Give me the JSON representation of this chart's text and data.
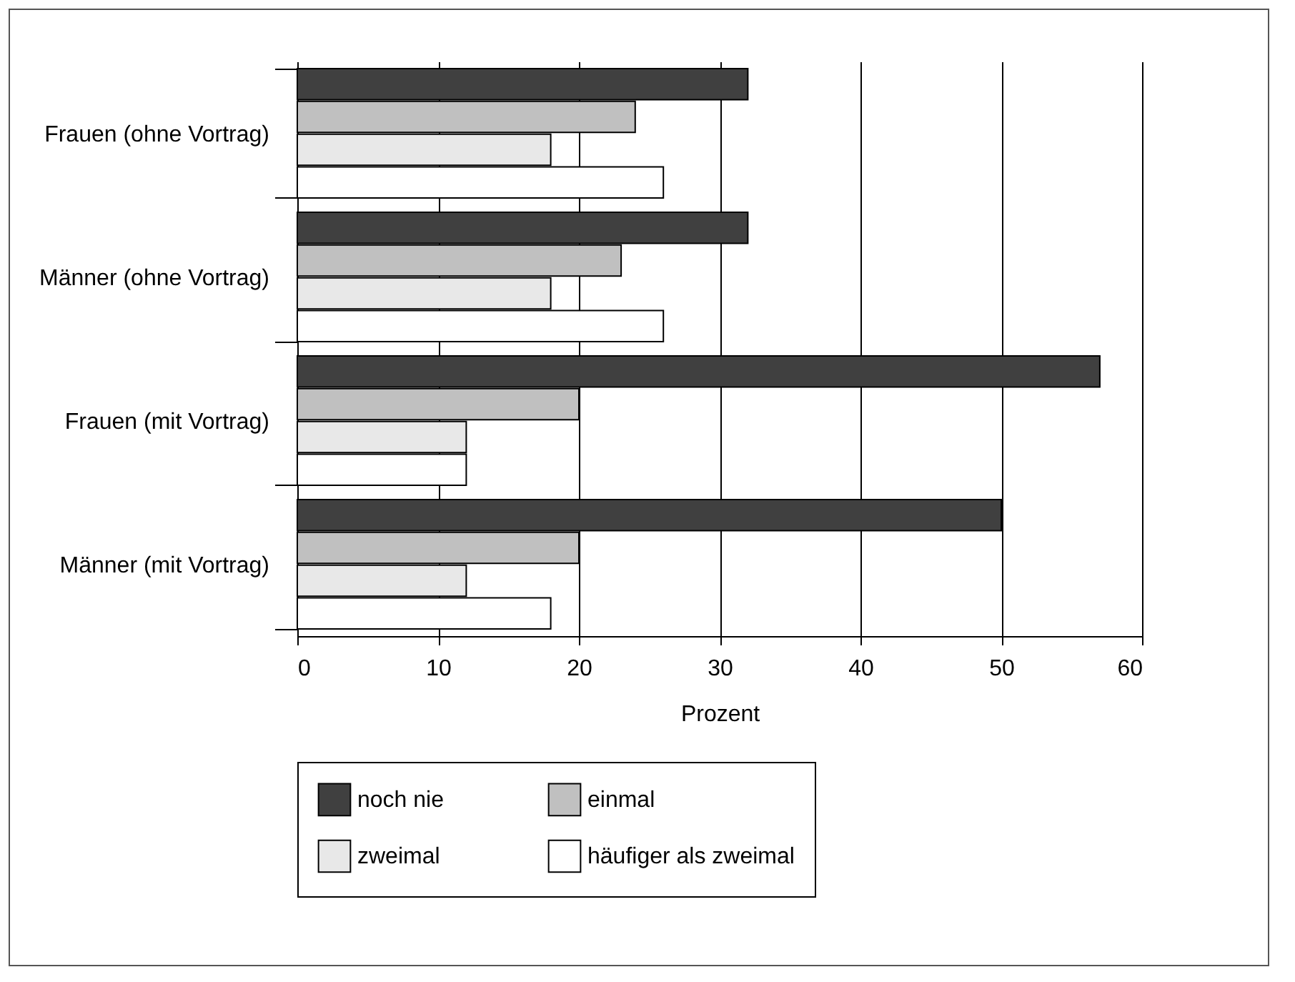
{
  "chart_data": {
    "type": "bar",
    "orientation": "horizontal",
    "categories": [
      "Frauen (ohne Vortrag)",
      "Männer (ohne Vortrag)",
      "Frauen (mit Vortrag)",
      "Männer (mit Vortrag)"
    ],
    "series": [
      {
        "name": "noch nie",
        "color": "#404040",
        "values": [
          32,
          32,
          57,
          50
        ]
      },
      {
        "name": "einmal",
        "color": "#c0c0c0",
        "values": [
          24,
          23,
          20,
          20
        ]
      },
      {
        "name": "zweimal",
        "color": "#e8e8e8",
        "values": [
          18,
          18,
          12,
          12
        ]
      },
      {
        "name": "häufiger als zweimal",
        "color": "#ffffff",
        "values": [
          26,
          26,
          12,
          18
        ]
      }
    ],
    "xlabel": "Prozent",
    "xlim": [
      0,
      60
    ],
    "xticks": [
      0,
      10,
      20,
      30,
      40,
      50,
      60
    ],
    "grid": "x",
    "legend": "bottom"
  }
}
